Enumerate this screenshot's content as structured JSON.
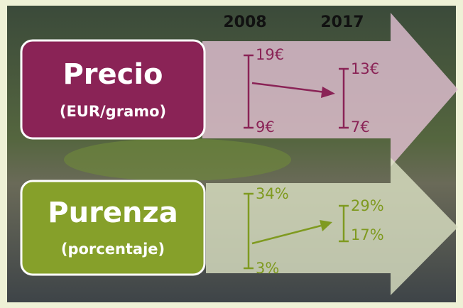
{
  "header": {
    "years": [
      "2008",
      "2017"
    ]
  },
  "rows": [
    {
      "label": "Precio",
      "sublabel": "(EUR/gramo)",
      "ranges": [
        {
          "high": "19€",
          "low": "9€"
        },
        {
          "high": "13€",
          "low": "7€"
        }
      ]
    },
    {
      "label": "Purenza",
      "sublabel": "(porcentaje)",
      "ranges": [
        {
          "high": "34%",
          "low": "3%"
        },
        {
          "high": "29%",
          "low": "17%"
        }
      ]
    }
  ]
}
